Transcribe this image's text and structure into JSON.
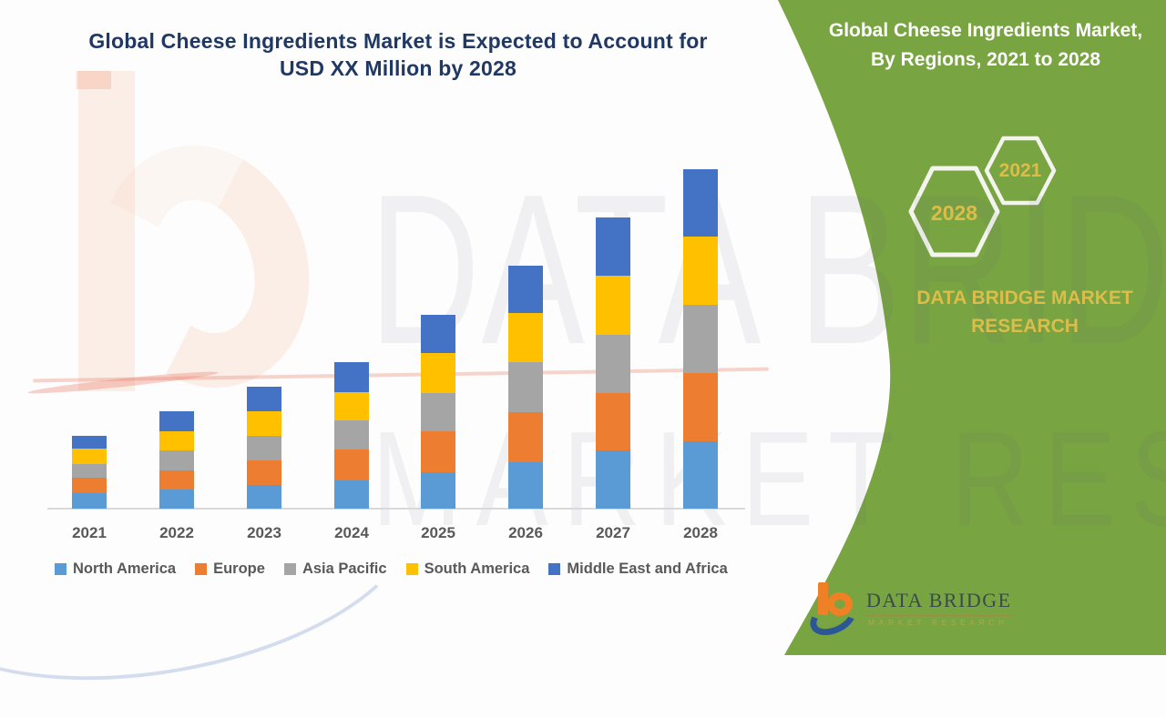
{
  "chart_title": {
    "line1": "Global Cheese Ingredients Market is Expected to Account for",
    "line2": "USD XX Million by 2028"
  },
  "chart_data": {
    "type": "bar",
    "stacked": true,
    "title": "Global Cheese Ingredients Market is Expected to Account for USD XX Million by 2028",
    "categories": [
      "2021",
      "2022",
      "2023",
      "2024",
      "2025",
      "2026",
      "2027",
      "2028"
    ],
    "series": [
      {
        "name": "North America",
        "color": "#5B9BD5",
        "values": [
          17,
          21,
          26,
          31,
          40,
          51,
          64,
          74
        ]
      },
      {
        "name": "Europe",
        "color": "#ED7D31",
        "values": [
          17,
          21,
          27,
          34,
          45,
          55,
          63,
          75
        ]
      },
      {
        "name": "Asia Pacific",
        "color": "#A5A5A5",
        "values": [
          15,
          22,
          27,
          32,
          42,
          55,
          64,
          75
        ]
      },
      {
        "name": "South America",
        "color": "#FFC000",
        "values": [
          17,
          21,
          27,
          31,
          44,
          54,
          65,
          75
        ]
      },
      {
        "name": "Middle East and Africa",
        "color": "#4472C4",
        "values": [
          14,
          22,
          27,
          33,
          42,
          52,
          64,
          74
        ]
      }
    ],
    "units": "relative units (no value axis shown; actual figures masked as 'USD XX Million')",
    "value_axis_visible": false,
    "grid": false,
    "legend_position": "bottom"
  },
  "panel": {
    "title": {
      "line1": "Global Cheese Ingredients Market,",
      "line2": "By Regions, 2021 to 2028"
    },
    "hexagons": [
      {
        "year": "2021",
        "size": "small"
      },
      {
        "year": "2028",
        "size": "large"
      }
    ],
    "brand": {
      "line1": "DATA BRIDGE MARKET",
      "line2": "RESEARCH"
    },
    "logo": {
      "wordmark": "DATA BRIDGE",
      "tagline": "MARKET RESEARCH"
    }
  },
  "watermark": {
    "line1": "DATA BRIDGE",
    "line2": "MARKET RESEARCH"
  },
  "colors": {
    "panel_green": "#78A441",
    "accent_gold": "#DDBD4A",
    "title_navy": "#1F3864",
    "label_gray": "#595959",
    "axis_gray": "#D9D9D9",
    "panel_text": "#FFFFFF",
    "hexagon_stroke": "#F4F4EE",
    "logo_orange": "#F08026",
    "logo_blue": "#2B5797",
    "logo_text": "#3A4A50"
  }
}
